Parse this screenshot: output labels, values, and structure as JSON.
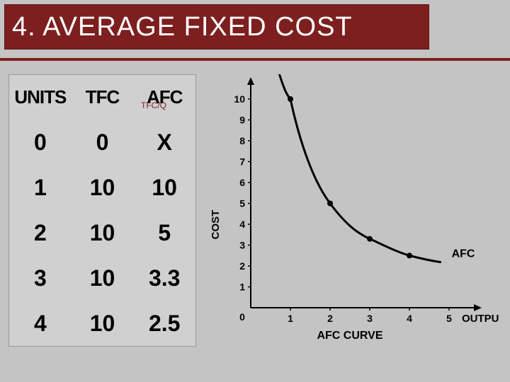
{
  "title": "4. AVERAGE FIXED COST",
  "table": {
    "headers": [
      "UNITS",
      "TFC",
      "AFC"
    ],
    "sublabel": "TFC/Q",
    "rows": [
      [
        "0",
        "0",
        "X"
      ],
      [
        "1",
        "10",
        "10"
      ],
      [
        "2",
        "10",
        "5"
      ],
      [
        "3",
        "10",
        "3.3"
      ],
      [
        "4",
        "10",
        "2.5"
      ]
    ]
  },
  "chart": {
    "type": "line",
    "title": "AFC CURVE",
    "xlabel": "OUTPUT",
    "ylabel": "COST",
    "series_label": "AFC",
    "xlim": [
      0,
      5
    ],
    "ylim": [
      0,
      10
    ],
    "xtick_step": 1,
    "ytick_step": 1,
    "xticks": [
      1,
      2,
      3,
      4,
      5
    ],
    "yticks": [
      1,
      2,
      3,
      4,
      5,
      6,
      7,
      8,
      9,
      10
    ],
    "points": [
      {
        "x": 1,
        "y": 10
      },
      {
        "x": 2,
        "y": 5
      },
      {
        "x": 3,
        "y": 3.3
      },
      {
        "x": 4,
        "y": 2.5
      }
    ],
    "curve_start": {
      "x": 0.72,
      "y": 11.2
    },
    "line_color": "#000000",
    "line_width": 3,
    "marker_color": "#000000",
    "marker_radius": 4,
    "background_color": "#d0d0d0",
    "axis_color": "#000000",
    "text_color": "#000000",
    "tick_fontsize": 14,
    "label_fontsize": 15
  }
}
